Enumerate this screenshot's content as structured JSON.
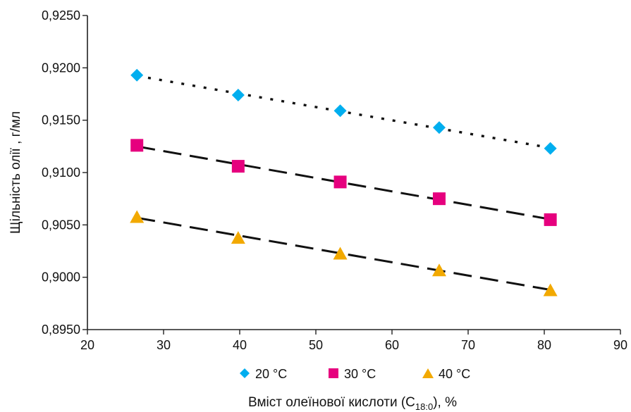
{
  "chart_data": {
    "type": "scatter",
    "xlabel": {
      "prefix": "Вміст олеїнової кислоти (C",
      "subscript": "18:0",
      "suffix": "), %"
    },
    "ylabel": "Щільність олії , г/мл",
    "xlim": [
      20,
      90
    ],
    "ylim": [
      0.895,
      0.925
    ],
    "x_ticks": [
      20,
      30,
      40,
      50,
      60,
      70,
      80,
      90
    ],
    "y_ticks": [
      0.895,
      0.9,
      0.905,
      0.91,
      0.915,
      0.92,
      0.925
    ],
    "x_tick_labels": [
      "20",
      "30",
      "40",
      "50",
      "60",
      "70",
      "80",
      "90"
    ],
    "y_tick_labels": [
      "0,8950",
      "0,9000",
      "0,9050",
      "0,9100",
      "0,9150",
      "0,9200",
      "0,9250"
    ],
    "grid": false,
    "legend_position": "bottom",
    "series": [
      {
        "name": "20 °C",
        "marker": "diamond",
        "color": "#00AEEF",
        "trendline": "dotted",
        "x": [
          26.5,
          39.8,
          53.2,
          66.2,
          80.8
        ],
        "y": [
          0.9193,
          0.9174,
          0.9159,
          0.9143,
          0.9123
        ]
      },
      {
        "name": "30 °C",
        "marker": "square",
        "color": "#E6007E",
        "trendline": "dashed",
        "x": [
          26.5,
          39.8,
          53.2,
          66.2,
          80.8
        ],
        "y": [
          0.9126,
          0.9106,
          0.9091,
          0.9075,
          0.9055
        ]
      },
      {
        "name": "40 °C",
        "marker": "triangle",
        "color": "#F2A900",
        "trendline": "dashed",
        "x": [
          26.5,
          39.8,
          53.2,
          66.2,
          80.8
        ],
        "y": [
          0.9058,
          0.9038,
          0.9023,
          0.9007,
          0.8988
        ]
      }
    ]
  },
  "colors": {
    "axis": "#222222",
    "trendline": "#111111"
  }
}
